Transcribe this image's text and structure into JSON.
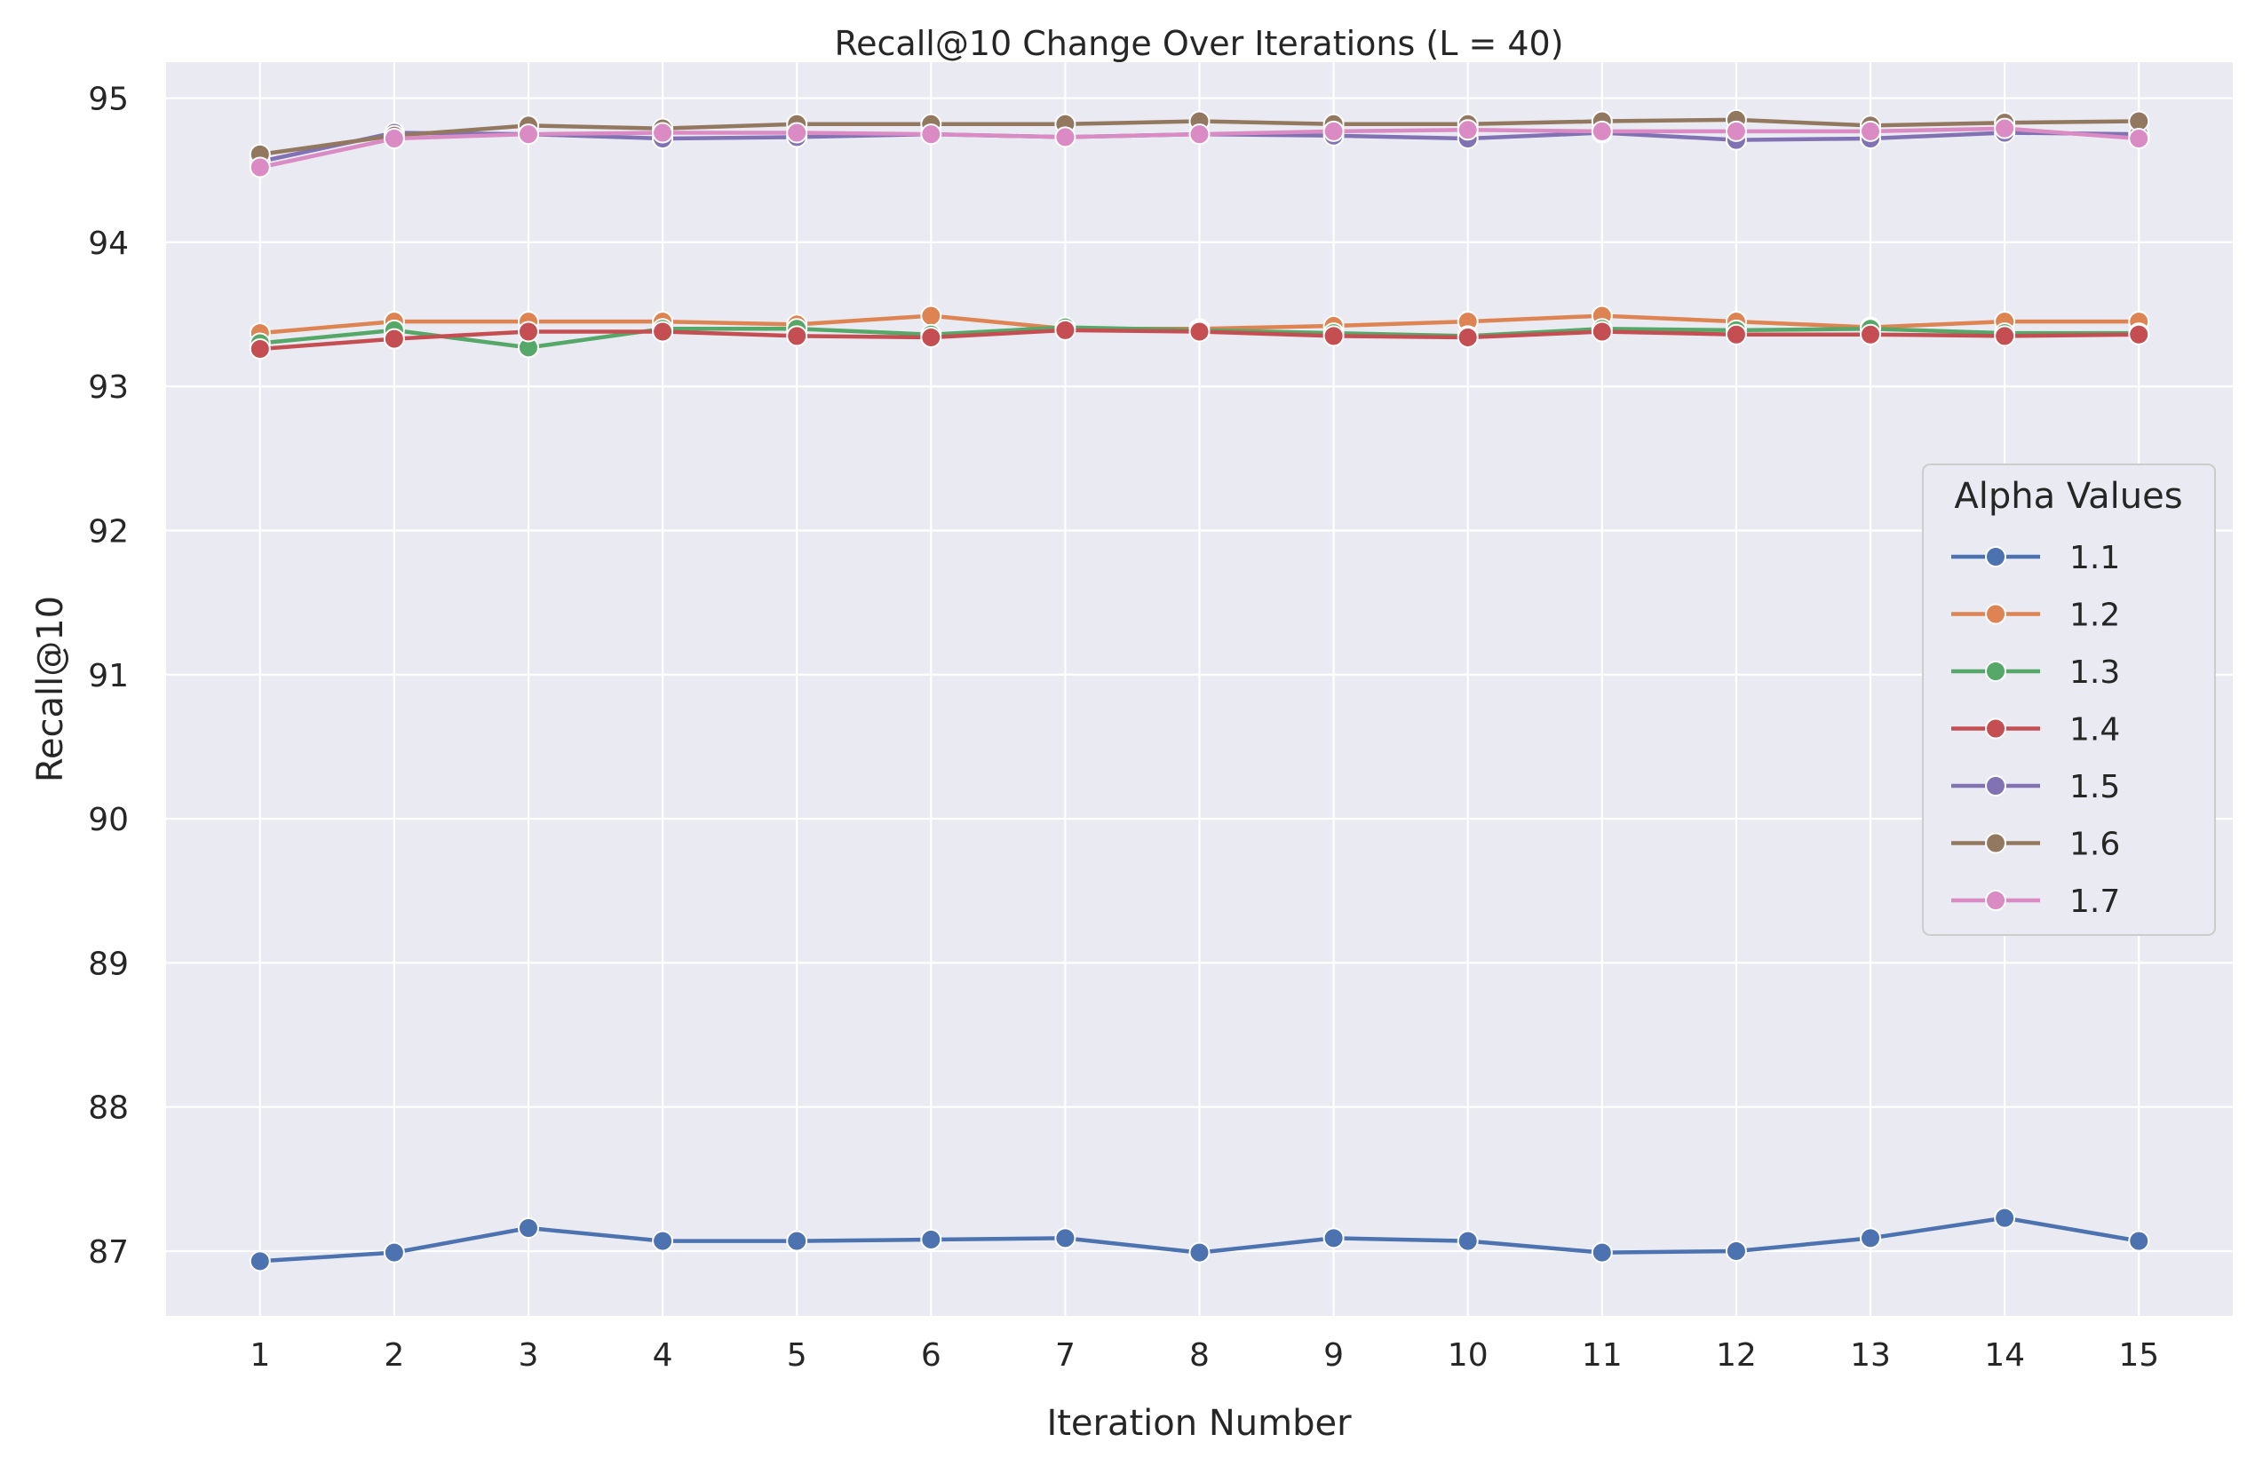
{
  "chart_data": {
    "type": "line",
    "title": "Recall@10 Change Over Iterations (L = 40)",
    "xlabel": "Iteration Number",
    "ylabel": "Recall@10",
    "x": [
      1,
      2,
      3,
      4,
      5,
      6,
      7,
      8,
      9,
      10,
      11,
      12,
      13,
      14,
      15
    ],
    "xticks": [
      "1",
      "2",
      "3",
      "4",
      "5",
      "6",
      "7",
      "8",
      "9",
      "10",
      "11",
      "12",
      "13",
      "14",
      "15"
    ],
    "yticks": [
      "87",
      "88",
      "89",
      "90",
      "91",
      "92",
      "93",
      "94",
      "95"
    ],
    "xlim": [
      0.3,
      15.7
    ],
    "ylim": [
      86.55,
      95.25
    ],
    "grid": true,
    "legend": {
      "title": "Alpha Values",
      "position": "right"
    },
    "series": [
      {
        "name": "1.1",
        "color": "#4c72b0",
        "values": [
          86.93,
          86.99,
          87.16,
          87.07,
          87.07,
          87.08,
          87.09,
          86.99,
          87.09,
          87.07,
          86.99,
          87.0,
          87.09,
          87.23,
          87.07
        ]
      },
      {
        "name": "1.2",
        "color": "#dd8452",
        "values": [
          93.37,
          93.45,
          93.45,
          93.45,
          93.43,
          93.49,
          93.4,
          93.4,
          93.42,
          93.45,
          93.49,
          93.45,
          93.41,
          93.45,
          93.45
        ]
      },
      {
        "name": "1.3",
        "color": "#55a868",
        "values": [
          93.3,
          93.39,
          93.27,
          93.4,
          93.4,
          93.36,
          93.41,
          93.39,
          93.37,
          93.35,
          93.4,
          93.39,
          93.4,
          93.37,
          93.37
        ]
      },
      {
        "name": "1.4",
        "color": "#c44e52",
        "values": [
          93.26,
          93.33,
          93.38,
          93.38,
          93.35,
          93.34,
          93.39,
          93.38,
          93.35,
          93.34,
          93.38,
          93.36,
          93.36,
          93.35,
          93.36
        ]
      },
      {
        "name": "1.5",
        "color": "#8172b3",
        "values": [
          94.56,
          94.76,
          94.75,
          94.72,
          94.73,
          94.75,
          94.73,
          94.75,
          94.74,
          94.72,
          94.76,
          94.71,
          94.72,
          94.76,
          94.75
        ]
      },
      {
        "name": "1.6",
        "color": "#937860",
        "values": [
          94.61,
          94.74,
          94.81,
          94.79,
          94.82,
          94.82,
          94.82,
          94.84,
          94.82,
          94.82,
          94.84,
          94.85,
          94.81,
          94.83,
          94.84
        ]
      },
      {
        "name": "1.7",
        "color": "#da8bc3",
        "values": [
          94.52,
          94.72,
          94.75,
          94.76,
          94.76,
          94.75,
          94.73,
          94.75,
          94.77,
          94.78,
          94.77,
          94.77,
          94.77,
          94.79,
          94.72
        ]
      }
    ]
  }
}
